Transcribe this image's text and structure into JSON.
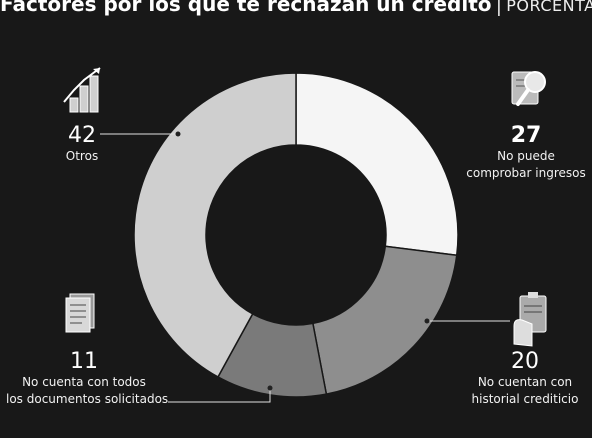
{
  "header": {
    "title": "Factores por los que te rechazan un crédito",
    "separator": "|",
    "subtitle": "PORCENTAJE"
  },
  "chart_data": {
    "type": "pie",
    "donut": true,
    "slices": [
      {
        "label": "No puede comprobar ingresos",
        "value": 27,
        "color": "#f5f5f5"
      },
      {
        "label": "No cuentan con historial crediticio",
        "value": 20,
        "color": "#8e8e8e"
      },
      {
        "label": "No cuenta con todos los documentos solicitados",
        "value": 11,
        "color": "#7a7a7a"
      },
      {
        "label": "Otros",
        "value": 42,
        "color": "#cfcfcf"
      }
    ]
  },
  "labels": {
    "otros": {
      "value": "42",
      "text": "Otros"
    },
    "ingresos": {
      "value": "27",
      "line1": "No puede",
      "line2": "comprobar ingresos"
    },
    "historial": {
      "value": "20",
      "line1": "No cuentan con",
      "line2": "historial crediticio"
    },
    "documentos": {
      "value": "11",
      "line1": "No cuenta con todos",
      "line2": "los documentos solicitados"
    }
  },
  "icons": [
    "bar-chart-growth-icon",
    "magnifier-icon",
    "clipboard-hand-icon",
    "document-stack-icon"
  ]
}
